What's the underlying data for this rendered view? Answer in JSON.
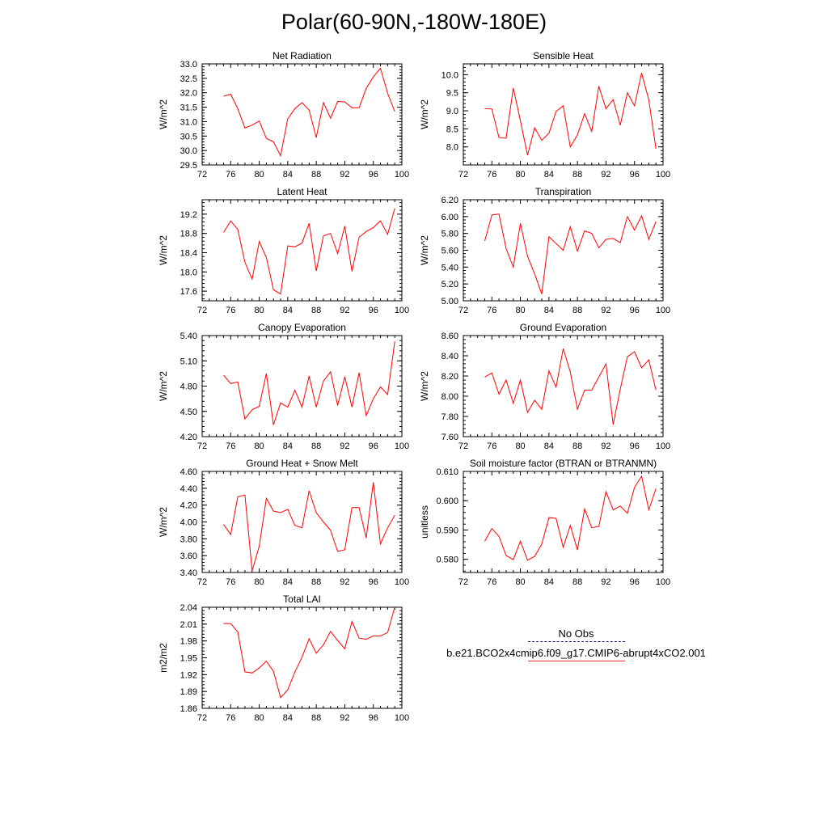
{
  "title": "Polar(60-90N,-180W-180E)",
  "colors": {
    "model_line": "#ff0000",
    "obs_line": "#1a1a8c",
    "axis": "#000000"
  },
  "legend": {
    "obs_label": "No Obs",
    "model_label": "b.e21.BCO2x4cmip6.f09_g17.CMIP6-abrupt4xCO2.001"
  },
  "chart_data": [
    {
      "type": "line",
      "title": "Net Radiation",
      "ylabel": "W/m^2",
      "xlim": [
        72,
        100
      ],
      "xticks": [
        "72",
        "76",
        "80",
        "84",
        "88",
        "92",
        "96",
        "100"
      ],
      "ylim": [
        29.5,
        33.0
      ],
      "yticks": [
        "29.5",
        "30.0",
        "30.5",
        "31.0",
        "31.5",
        "32.0",
        "32.5",
        "33.0"
      ],
      "series": [
        {
          "x": [
            75,
            76,
            77,
            78,
            79,
            80,
            81,
            82,
            83,
            84,
            85,
            86,
            87,
            88,
            89,
            90,
            91,
            92,
            93,
            94,
            95,
            96,
            97,
            98,
            99
          ],
          "values": [
            31.88,
            31.95,
            31.45,
            30.78,
            30.88,
            31.02,
            30.42,
            30.3,
            29.82,
            31.1,
            31.45,
            31.66,
            31.4,
            30.45,
            31.66,
            31.12,
            31.7,
            31.68,
            31.48,
            31.48,
            32.15,
            32.55,
            32.85,
            31.98,
            31.35
          ]
        }
      ]
    },
    {
      "type": "line",
      "title": "Sensible Heat",
      "ylabel": "W/m^2",
      "xlim": [
        72,
        100
      ],
      "xticks": [
        "72",
        "76",
        "80",
        "84",
        "88",
        "92",
        "96",
        "100"
      ],
      "ylim": [
        7.5,
        10.3
      ],
      "yticks": [
        "8.0",
        "8.5",
        "9.0",
        "9.5",
        "10.0"
      ],
      "series": [
        {
          "x": [
            75,
            76,
            77,
            78,
            79,
            80,
            81,
            82,
            83,
            84,
            85,
            86,
            87,
            88,
            89,
            90,
            91,
            92,
            93,
            94,
            95,
            96,
            97,
            98,
            99
          ],
          "values": [
            9.06,
            9.05,
            8.26,
            8.24,
            9.63,
            8.72,
            7.77,
            8.53,
            8.18,
            8.38,
            8.98,
            9.14,
            8.0,
            8.33,
            8.92,
            8.43,
            9.68,
            9.06,
            9.31,
            8.6,
            9.5,
            9.14,
            10.05,
            9.3,
            7.95
          ]
        }
      ]
    },
    {
      "type": "line",
      "title": "Latent Heat",
      "ylabel": "W/m^2",
      "xlim": [
        72,
        100
      ],
      "xticks": [
        "72",
        "76",
        "80",
        "84",
        "88",
        "92",
        "96",
        "100"
      ],
      "ylim": [
        17.4,
        19.5
      ],
      "yticks": [
        "17.6",
        "18.0",
        "18.4",
        "18.8",
        "19.2"
      ],
      "series": [
        {
          "x": [
            75,
            76,
            77,
            78,
            79,
            80,
            81,
            82,
            83,
            84,
            85,
            86,
            87,
            88,
            89,
            90,
            91,
            92,
            93,
            94,
            95,
            96,
            97,
            98,
            99
          ],
          "values": [
            18.82,
            19.06,
            18.88,
            18.2,
            17.85,
            18.63,
            18.3,
            17.63,
            17.54,
            18.54,
            18.52,
            18.6,
            19.01,
            18.02,
            18.75,
            18.8,
            18.38,
            18.95,
            18.01,
            18.72,
            18.84,
            18.92,
            19.06,
            18.78,
            19.32
          ]
        }
      ]
    },
    {
      "type": "line",
      "title": "Transpiration",
      "ylabel": "W/m^2",
      "xlim": [
        72,
        100
      ],
      "xticks": [
        "72",
        "76",
        "80",
        "84",
        "88",
        "92",
        "96",
        "100"
      ],
      "ylim": [
        5.0,
        6.2
      ],
      "yticks": [
        "5.00",
        "5.20",
        "5.40",
        "5.60",
        "5.80",
        "6.00",
        "6.20"
      ],
      "series": [
        {
          "x": [
            75,
            76,
            77,
            78,
            79,
            80,
            81,
            82,
            83,
            84,
            85,
            86,
            87,
            88,
            89,
            90,
            91,
            92,
            93,
            94,
            95,
            96,
            97,
            98,
            99
          ],
          "values": [
            5.71,
            6.02,
            6.03,
            5.62,
            5.4,
            5.92,
            5.53,
            5.32,
            5.08,
            5.76,
            5.68,
            5.6,
            5.88,
            5.59,
            5.83,
            5.8,
            5.63,
            5.73,
            5.74,
            5.69,
            6.0,
            5.84,
            6.01,
            5.73,
            5.94
          ]
        }
      ]
    },
    {
      "type": "line",
      "title": "Canopy Evaporation",
      "ylabel": "W/m^2",
      "xlim": [
        72,
        100
      ],
      "xticks": [
        "72",
        "76",
        "80",
        "84",
        "88",
        "92",
        "96",
        "100"
      ],
      "ylim": [
        4.2,
        5.4
      ],
      "yticks": [
        "4.20",
        "4.50",
        "4.80",
        "5.10",
        "5.40"
      ],
      "series": [
        {
          "x": [
            75,
            76,
            77,
            78,
            79,
            80,
            81,
            82,
            83,
            84,
            85,
            86,
            87,
            88,
            89,
            90,
            91,
            92,
            93,
            94,
            95,
            96,
            97,
            98,
            99
          ],
          "values": [
            4.93,
            4.83,
            4.85,
            4.41,
            4.52,
            4.56,
            4.95,
            4.34,
            4.6,
            4.55,
            4.75,
            4.55,
            4.92,
            4.55,
            4.86,
            4.97,
            4.57,
            4.91,
            4.55,
            4.96,
            4.45,
            4.65,
            4.79,
            4.7,
            5.33
          ]
        }
      ]
    },
    {
      "type": "line",
      "title": "Ground Evaporation",
      "ylabel": "W/m^2",
      "xlim": [
        72,
        100
      ],
      "xticks": [
        "72",
        "76",
        "80",
        "84",
        "88",
        "92",
        "96",
        "100"
      ],
      "ylim": [
        7.6,
        8.6
      ],
      "yticks": [
        "7.60",
        "7.80",
        "8.00",
        "8.20",
        "8.40",
        "8.60"
      ],
      "series": [
        {
          "x": [
            75,
            76,
            77,
            78,
            79,
            80,
            81,
            82,
            83,
            84,
            85,
            86,
            87,
            88,
            89,
            90,
            91,
            92,
            93,
            94,
            95,
            96,
            97,
            98,
            99
          ],
          "values": [
            8.19,
            8.23,
            8.02,
            8.16,
            7.93,
            8.16,
            7.84,
            7.96,
            7.87,
            8.25,
            8.09,
            8.47,
            8.24,
            7.87,
            8.06,
            8.06,
            8.19,
            8.32,
            7.72,
            8.07,
            8.39,
            8.44,
            8.28,
            8.36,
            8.06
          ]
        }
      ]
    },
    {
      "type": "line",
      "title": "Ground Heat + Snow Melt",
      "ylabel": "W/m^2",
      "xlim": [
        72,
        100
      ],
      "xticks": [
        "72",
        "76",
        "80",
        "84",
        "88",
        "92",
        "96",
        "100"
      ],
      "ylim": [
        3.4,
        4.6
      ],
      "yticks": [
        "3.40",
        "3.60",
        "3.80",
        "4.00",
        "4.20",
        "4.40",
        "4.60"
      ],
      "series": [
        {
          "x": [
            75,
            76,
            77,
            78,
            79,
            80,
            81,
            82,
            83,
            84,
            85,
            86,
            87,
            88,
            89,
            90,
            91,
            92,
            93,
            94,
            95,
            96,
            97,
            98,
            99
          ],
          "values": [
            3.97,
            3.85,
            4.3,
            4.32,
            3.42,
            3.71,
            4.28,
            4.13,
            4.11,
            4.15,
            3.96,
            3.93,
            4.37,
            4.11,
            4.0,
            3.9,
            3.65,
            3.67,
            4.17,
            4.17,
            3.81,
            4.47,
            3.74,
            3.93,
            4.08
          ]
        }
      ]
    },
    {
      "type": "line",
      "title": "Soil moisture factor (BTRAN or BTRANMN)",
      "ylabel": "unitless",
      "xlim": [
        72,
        100
      ],
      "xticks": [
        "72",
        "76",
        "80",
        "84",
        "88",
        "92",
        "96",
        "100"
      ],
      "ylim": [
        0.5755,
        0.61
      ],
      "yticks": [
        "0.580",
        "0.590",
        "0.600",
        "0.610"
      ],
      "series": [
        {
          "x": [
            75,
            76,
            77,
            78,
            79,
            80,
            81,
            82,
            83,
            84,
            85,
            86,
            87,
            88,
            89,
            90,
            91,
            92,
            93,
            94,
            95,
            96,
            97,
            98,
            99
          ],
          "values": [
            0.5862,
            0.5905,
            0.5878,
            0.5813,
            0.5799,
            0.5862,
            0.5797,
            0.581,
            0.5852,
            0.5942,
            0.594,
            0.5841,
            0.5916,
            0.5832,
            0.5972,
            0.5908,
            0.5912,
            0.6031,
            0.5969,
            0.5982,
            0.5957,
            0.6045,
            0.6084,
            0.5969,
            0.6041
          ]
        }
      ]
    },
    {
      "type": "line",
      "title": "Total LAI",
      "ylabel": "m2/m2",
      "xlim": [
        72,
        100
      ],
      "xticks": [
        "72",
        "76",
        "80",
        "84",
        "88",
        "92",
        "96",
        "100"
      ],
      "ylim": [
        1.86,
        2.04
      ],
      "yticks": [
        "1.86",
        "1.89",
        "1.92",
        "1.95",
        "1.98",
        "2.01",
        "2.04"
      ],
      "series": [
        {
          "x": [
            75,
            76,
            77,
            78,
            79,
            80,
            81,
            82,
            83,
            84,
            85,
            86,
            87,
            88,
            89,
            90,
            91,
            92,
            93,
            94,
            95,
            96,
            97,
            98,
            99
          ],
          "values": [
            2.011,
            2.011,
            1.996,
            1.925,
            1.923,
            1.932,
            1.944,
            1.926,
            1.879,
            1.893,
            1.925,
            1.951,
            1.984,
            1.958,
            1.973,
            1.997,
            1.981,
            1.966,
            2.015,
            1.985,
            1.983,
            1.989,
            1.989,
            1.995,
            2.04
          ]
        }
      ]
    }
  ]
}
